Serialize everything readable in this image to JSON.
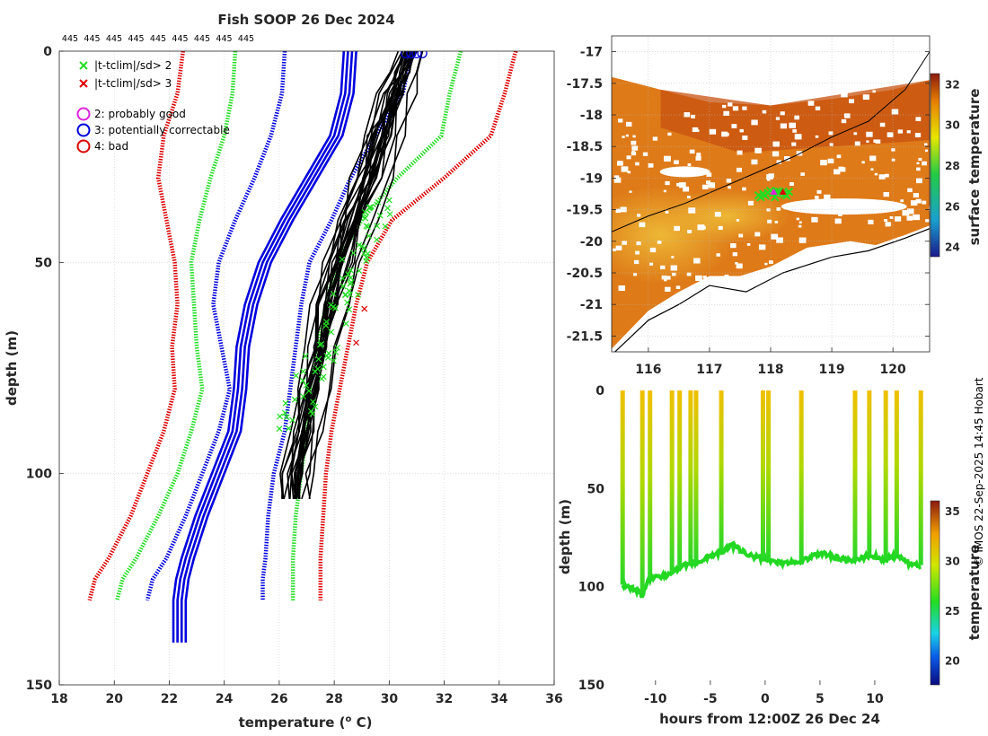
{
  "chart_data": [
    {
      "type": "line",
      "title": "Fish SOOP 26 Dec 2024",
      "xlabel": "temperature (",
      "xlabel_unit_sup": "o",
      "xlabel_unit": " C)",
      "ylabel": "depth (m)",
      "xlim": [
        18,
        36
      ],
      "ylim": [
        150,
        0
      ],
      "xticks": [
        "18",
        "20",
        "22",
        "24",
        "26",
        "28",
        "30",
        "32",
        "34",
        "36"
      ],
      "yticks": [
        "0",
        "50",
        "100",
        "150"
      ],
      "cast_labels": [
        "445",
        "445",
        "445",
        "445",
        "445",
        "445",
        "445",
        "445",
        "445"
      ],
      "legend": [
        {
          "marker": "x",
          "color": "#22dd22",
          "label": "|t-tclim|/sd> 2"
        },
        {
          "marker": "x",
          "color": "#dd0000",
          "label": "|t-tclim|/sd> 3"
        },
        {
          "marker": "o",
          "color": "#dd22dd",
          "label": "2: probably good"
        },
        {
          "marker": "o",
          "color": "#0000dd",
          "label": "3: potentially correctable"
        },
        {
          "marker": "o",
          "color": "#dd0000",
          "label": "4: bad"
        }
      ],
      "climatology_depths": [
        0,
        10,
        20,
        30,
        40,
        50,
        60,
        70,
        80,
        90,
        100,
        110,
        120,
        125,
        130
      ],
      "climatology": [
        {
          "name": "mean-3sd",
          "color": "#dd0000",
          "values": [
            22.5,
            22.3,
            21.8,
            21.6,
            21.9,
            22.2,
            22.3,
            22.1,
            22.2,
            21.8,
            21.2,
            20.6,
            19.8,
            19.3,
            19.1
          ]
        },
        {
          "name": "mean-2sd",
          "color": "#22dd22",
          "values": [
            24.4,
            24.3,
            24.0,
            23.5,
            23.1,
            22.8,
            22.9,
            23.0,
            23.2,
            22.8,
            22.3,
            21.6,
            20.8,
            20.3,
            20.1
          ]
        },
        {
          "name": "mean-1sd",
          "color": "#0000dd",
          "values": [
            26.2,
            26.1,
            25.7,
            25.1,
            24.4,
            23.8,
            23.6,
            23.9,
            24.2,
            23.8,
            23.2,
            22.6,
            21.9,
            21.4,
            21.2
          ]
        },
        {
          "name": "mean+1sd",
          "color": "#0000dd",
          "values": [
            30.8,
            30.5,
            29.5,
            28.6,
            27.9,
            27.1,
            26.8,
            26.6,
            26.4,
            26.2,
            25.8,
            25.6,
            25.5,
            25.4,
            25.4
          ]
        },
        {
          "name": "mean+2sd",
          "color": "#22dd22",
          "values": [
            32.6,
            32.2,
            31.9,
            30.3,
            29.0,
            28.1,
            27.7,
            27.4,
            27.1,
            27.0,
            26.8,
            26.6,
            26.5,
            26.5,
            26.5
          ]
        },
        {
          "name": "mean+3sd",
          "color": "#dd0000",
          "values": [
            34.6,
            34.2,
            33.7,
            32.0,
            30.1,
            29.2,
            28.8,
            28.5,
            28.2,
            27.9,
            27.7,
            27.6,
            27.5,
            27.5,
            27.5
          ]
        }
      ],
      "profile_depths": [
        0,
        5,
        10,
        20,
        30,
        40,
        50,
        60,
        70,
        80,
        90,
        100,
        106
      ],
      "profiles": [
        [
          30.8,
          30.4,
          30.2,
          29.8,
          29.3,
          28.7,
          28.0,
          27.5,
          27.2,
          27.0,
          26.7,
          26.4,
          26.3
        ],
        [
          30.6,
          30.5,
          30.0,
          29.2,
          28.7,
          28.3,
          27.9,
          27.7,
          27.4,
          27.1,
          26.9,
          26.6,
          26.5
        ],
        [
          30.9,
          30.7,
          30.4,
          30.0,
          29.5,
          29.0,
          28.4,
          27.9,
          27.6,
          27.3,
          27.0,
          26.8,
          26.7
        ],
        [
          30.7,
          30.3,
          30.1,
          29.6,
          29.0,
          28.5,
          28.2,
          27.8,
          27.5,
          27.2,
          26.8,
          26.5,
          26.4
        ],
        [
          31.0,
          30.8,
          30.6,
          30.2,
          29.8,
          29.3,
          28.7,
          28.2,
          27.8,
          27.5,
          27.2,
          27.0,
          26.9
        ],
        [
          30.5,
          30.2,
          29.9,
          29.4,
          28.9,
          28.4,
          28.0,
          27.6,
          27.3,
          27.0,
          26.7,
          26.4,
          26.3
        ],
        [
          30.8,
          30.6,
          30.3,
          29.9,
          29.4,
          28.8,
          28.3,
          27.9,
          27.5,
          27.3,
          27.1,
          26.9,
          26.8
        ],
        [
          30.6,
          30.4,
          30.2,
          29.7,
          29.2,
          28.6,
          28.1,
          27.7,
          27.4,
          27.1,
          26.8,
          26.6,
          26.5
        ]
      ],
      "mean_profile_depths": [
        0,
        10,
        20,
        30,
        40,
        50,
        60,
        70,
        80,
        90,
        100,
        110,
        120,
        125,
        130,
        140
      ],
      "mean_profile": [
        28.5,
        28.4,
        28.0,
        27.1,
        26.2,
        25.4,
        24.9,
        24.6,
        24.5,
        24.3,
        23.7,
        23.1,
        22.6,
        22.4,
        22.3,
        22.3
      ],
      "flag_circle_x": [
        30.6,
        30.8,
        31.0,
        31.2
      ]
    },
    {
      "type": "heatmap",
      "xlim": [
        115.4,
        120.6
      ],
      "ylim": [
        -21.75,
        -16.75
      ],
      "xticks": [
        "116",
        "117",
        "118",
        "119",
        "120"
      ],
      "yticks": [
        "-17",
        "-17.5",
        "-18",
        "-18.5",
        "-19",
        "-19.5",
        "-20",
        "-20.5",
        "-21",
        "-21.5"
      ],
      "colorbar_label": "surface temperature",
      "colorbar_range": [
        23.5,
        32.5
      ],
      "colorbar_ticks": [
        "32",
        "30",
        "28",
        "26",
        "24"
      ],
      "track_lon": [
        117.8,
        118.3
      ],
      "track_lat": [
        -19.25,
        -19.25
      ]
    },
    {
      "type": "heatmap",
      "xlabel": "hours from 12:00Z 26 Dec 24",
      "ylabel": "depth (m)",
      "xlim": [
        -14,
        15
      ],
      "ylim": [
        150,
        0
      ],
      "xticks": [
        "-10",
        "-5",
        "0",
        "5",
        "10"
      ],
      "yticks": [
        "0",
        "50",
        "100",
        "150"
      ],
      "colorbar_label": "temperature",
      "colorbar_range": [
        17.5,
        36
      ],
      "colorbar_ticks": [
        "35",
        "30",
        "25",
        "20"
      ],
      "cast_hours": [
        -13,
        -11.2,
        -10.5,
        -8.5,
        -7.8,
        -6.8,
        -6.3,
        -4,
        -0.2,
        0.3,
        3.3,
        8.2,
        9.5,
        11,
        12,
        14.2
      ],
      "bottom_hours": [
        -13,
        -12,
        -11.2,
        -10.6,
        -9.5,
        -8.5,
        -7.5,
        -6.5,
        -5,
        -4,
        -3,
        -1.5,
        0,
        1.5,
        3.3,
        5,
        6.5,
        8,
        9.5,
        11,
        12,
        13,
        14.2
      ],
      "bottom_depths": [
        99,
        101,
        104,
        96,
        95,
        93,
        89,
        88,
        85,
        82,
        79,
        84,
        86,
        88,
        87,
        83,
        85,
        87,
        84,
        86,
        84,
        88,
        89
      ]
    }
  ],
  "credit": "© IMOS 22-Sep-2025 14:45 Hobart"
}
